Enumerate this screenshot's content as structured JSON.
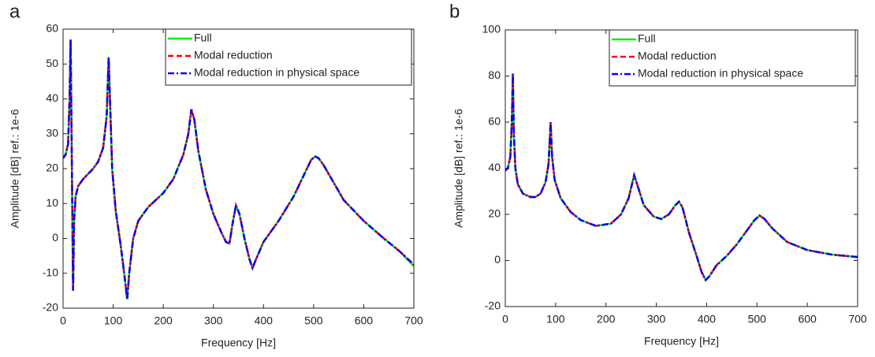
{
  "chart_data": [
    {
      "type": "line",
      "label": "a",
      "xlabel": "Frequency [Hz]",
      "ylabel": "Amplitude [dB] ref.: 1e-6",
      "xlim": [
        0,
        700
      ],
      "xticks": [
        0,
        100,
        200,
        300,
        400,
        500,
        600,
        700
      ],
      "ylim": [
        -20,
        60
      ],
      "yticks": [
        -20,
        -10,
        0,
        10,
        20,
        30,
        40,
        50,
        60
      ],
      "legend": "upper right",
      "x": [
        0,
        5,
        10,
        13,
        15,
        17,
        19,
        20,
        22,
        25,
        30,
        40,
        50,
        60,
        70,
        80,
        87,
        91,
        94,
        98,
        105,
        115,
        122,
        128,
        132,
        140,
        150,
        170,
        200,
        220,
        240,
        250,
        256,
        262,
        270,
        285,
        300,
        315,
        325,
        332,
        338,
        345,
        352,
        362,
        372,
        378,
        385,
        400,
        430,
        460,
        480,
        495,
        503,
        510,
        520,
        540,
        560,
        600,
        640,
        670,
        700
      ],
      "series": [
        {
          "name": "Full",
          "color": "#00ee00",
          "dash": "solid",
          "values": [
            23,
            24,
            27,
            40,
            57,
            30,
            0,
            -15,
            5,
            12,
            15,
            17,
            18.5,
            20,
            22,
            26,
            35,
            52,
            38,
            20,
            8,
            -2,
            -10,
            -17.5,
            -10,
            0,
            5,
            9,
            13,
            17,
            24,
            30,
            37,
            34,
            25,
            14,
            7,
            2,
            -1,
            -1.5,
            4,
            9.5,
            7,
            0,
            -6,
            -8.5,
            -6,
            -1,
            5,
            12,
            18,
            22.5,
            23.5,
            23,
            21,
            16,
            11,
            5,
            0,
            -3.5,
            -8
          ]
        },
        {
          "name": "Modal reduction",
          "color": "#ff0000",
          "dash": "dashed",
          "values": [
            23,
            24,
            27,
            40,
            57,
            30,
            0,
            -15,
            5,
            12,
            15,
            17,
            18.5,
            20,
            22,
            26,
            35,
            52,
            38,
            20,
            8,
            -2,
            -10,
            -17.5,
            -10,
            0,
            5,
            9,
            13,
            17,
            24,
            30,
            37,
            34,
            25,
            14,
            7,
            2,
            -1,
            -1.5,
            4,
            9.5,
            7,
            0,
            -6,
            -8.5,
            -6,
            -1,
            5,
            12,
            18,
            22.5,
            23.5,
            23,
            21,
            16,
            11,
            5,
            0,
            -3.5,
            -7.5
          ]
        },
        {
          "name": "Modal reduction in physical space",
          "color": "#0000ff",
          "dash": "dashdot",
          "values": [
            23,
            24,
            27,
            40,
            57,
            30,
            0,
            -15,
            5,
            12,
            15,
            17,
            18.5,
            20,
            22,
            26,
            35,
            52,
            38,
            20,
            8,
            -2,
            -10,
            -17.5,
            -10,
            0,
            5,
            9,
            13,
            17,
            24,
            30,
            37,
            34,
            25,
            14,
            7,
            2,
            -1,
            -1.5,
            4,
            9.5,
            7,
            0,
            -6,
            -8.5,
            -6,
            -1,
            5,
            12,
            18,
            22.5,
            23.5,
            23,
            21,
            16,
            11,
            5,
            0,
            -3.5,
            -7.5
          ]
        }
      ]
    },
    {
      "type": "line",
      "label": "b",
      "xlabel": "Frequency [Hz]",
      "ylabel": "Amplitude [dB] ref.: 1e-6",
      "xlim": [
        0,
        700
      ],
      "xticks": [
        0,
        100,
        200,
        300,
        400,
        500,
        600,
        700
      ],
      "ylim": [
        -20,
        100
      ],
      "yticks": [
        -20,
        0,
        20,
        40,
        60,
        80,
        100
      ],
      "legend": "upper right",
      "x": [
        0,
        5,
        10,
        13,
        15,
        17,
        20,
        25,
        35,
        50,
        60,
        70,
        80,
        86,
        90,
        93,
        98,
        110,
        130,
        150,
        180,
        210,
        230,
        245,
        256,
        262,
        275,
        295,
        310,
        325,
        338,
        345,
        352,
        365,
        380,
        390,
        398,
        405,
        420,
        440,
        460,
        480,
        495,
        505,
        515,
        530,
        560,
        600,
        650,
        700
      ],
      "series": [
        {
          "name": "Full",
          "color": "#00ee00",
          "dash": "solid",
          "values": [
            39,
            40,
            45,
            60,
            81,
            55,
            40,
            33,
            29,
            27.5,
            27.5,
            29,
            34,
            42,
            60,
            45,
            35,
            27,
            21,
            17.5,
            15,
            16,
            20,
            27,
            37,
            33,
            24,
            19,
            18,
            20,
            24,
            25.5,
            23,
            12,
            2,
            -5,
            -8.5,
            -7,
            -2,
            2,
            7,
            13,
            17.5,
            19.5,
            18,
            14,
            8,
            4.5,
            2.5,
            1.5
          ]
        },
        {
          "name": "Modal reduction",
          "color": "#ff0000",
          "dash": "dashed",
          "values": [
            39,
            40,
            45,
            60,
            81,
            55,
            40,
            33,
            29,
            27.5,
            27.5,
            29,
            34,
            42,
            60,
            45,
            35,
            27,
            21,
            17.5,
            15,
            16,
            20,
            27,
            37,
            33,
            24,
            19,
            18,
            20,
            24,
            25.5,
            23,
            12,
            2,
            -5,
            -8.5,
            -7,
            -2,
            2,
            7,
            13,
            17.5,
            19.5,
            18,
            14,
            8,
            4.5,
            2.5,
            1.5
          ]
        },
        {
          "name": "Modal reduction in physical space",
          "color": "#0000ff",
          "dash": "dashdot",
          "values": [
            39,
            40,
            45,
            60,
            81,
            55,
            40,
            33,
            29,
            27.5,
            27.5,
            29,
            34,
            42,
            60,
            45,
            35,
            27,
            21,
            17.5,
            15,
            16,
            20,
            27,
            37,
            33,
            24,
            19,
            18,
            20,
            24,
            25.5,
            23,
            12,
            2,
            -5,
            -8.5,
            -7,
            -2,
            2,
            7,
            13,
            17.5,
            19.5,
            18,
            14,
            8,
            4.5,
            2.5,
            1.5
          ]
        }
      ]
    }
  ]
}
